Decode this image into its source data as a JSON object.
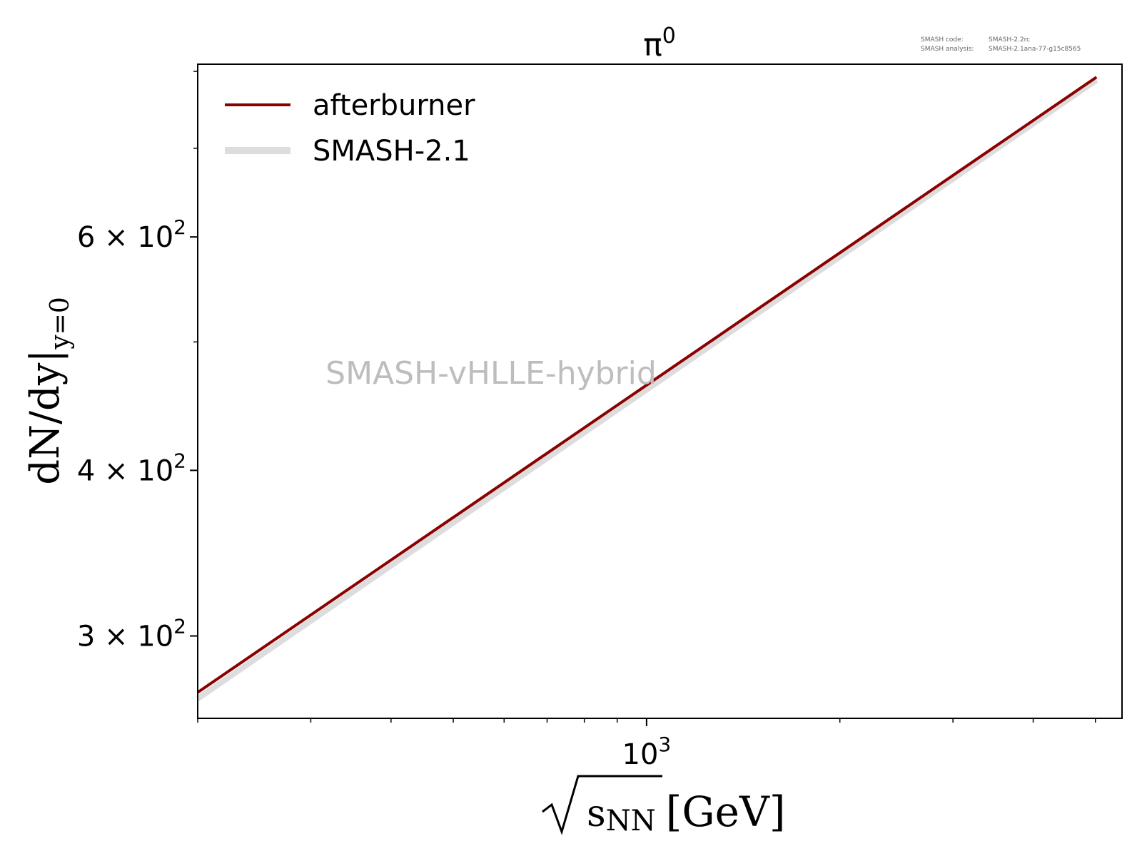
{
  "meta": {
    "code_label": "SMASH code:",
    "code_value": "SMASH-2.2rc",
    "analysis_label": "SMASH analysis:",
    "analysis_value": "SMASH-2.1ana-77-g15c8565"
  },
  "watermark": "SMASH-vHLLE-hybrid",
  "colors": {
    "afterburner": "#8b0000",
    "smash": "#dddddd",
    "watermark": "#bdbdbd"
  },
  "chart_data": {
    "type": "line",
    "title": "π⁰",
    "title_base": "π",
    "title_sup": "0",
    "xlabel": "√sNN [GeV]",
    "xlabel_var": "s",
    "xlabel_sub": "NN",
    "xlabel_unit": "[GeV]",
    "ylabel": "dN/dy|y=0",
    "ylabel_main": "dN/dy|",
    "ylabel_sub": "y=0",
    "x_scale": "log",
    "y_scale": "log",
    "xlim": [
      200,
      5500
    ],
    "ylim": [
      260,
      810
    ],
    "x_major_ticks": [
      {
        "value": 1000,
        "base": "10",
        "exp": "3"
      }
    ],
    "x_minor_ticks": [
      200,
      300,
      400,
      500,
      600,
      700,
      800,
      900,
      2000,
      3000,
      4000,
      5000
    ],
    "y_major_ticks": [
      {
        "value": 300,
        "mant": "3",
        "base": "10",
        "exp": "2"
      },
      {
        "value": 400,
        "mant": "4",
        "base": "10",
        "exp": "2"
      },
      {
        "value": 600,
        "mant": "6",
        "base": "10",
        "exp": "2"
      }
    ],
    "y_minor_ticks": [
      500,
      700,
      800
    ],
    "times_sign": "×",
    "legend_position": "upper-left",
    "series": [
      {
        "name": "SMASH-2.1",
        "x": [
          200,
          5020
        ],
        "y": [
          269,
          788
        ]
      },
      {
        "name": "afterburner",
        "x": [
          200,
          5020
        ],
        "y": [
          272,
          792
        ]
      }
    ]
  }
}
